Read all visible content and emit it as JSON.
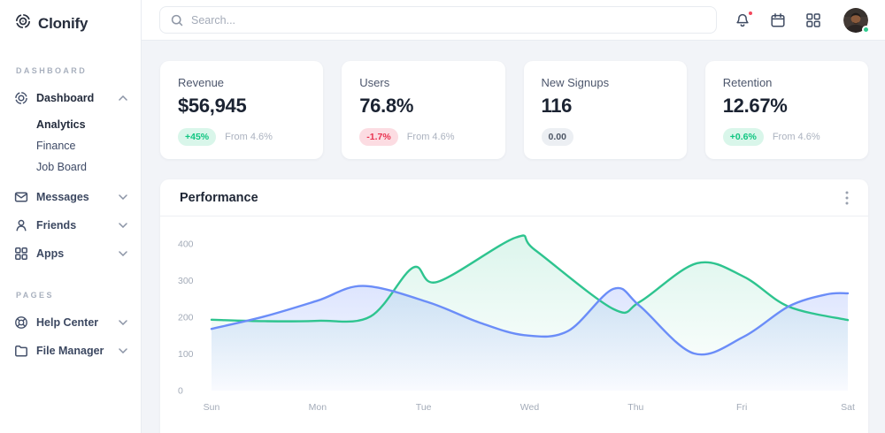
{
  "sidebar": {
    "logo_text": "Clonify",
    "sections": [
      {
        "label": "DASHBOARD",
        "items": [
          {
            "label": "Dashboard",
            "icon": "dashboard-icon",
            "expanded": true,
            "children": [
              {
                "label": "Analytics",
                "active": true
              },
              {
                "label": "Finance",
                "active": false
              },
              {
                "label": "Job Board",
                "active": false
              }
            ]
          },
          {
            "label": "Messages",
            "icon": "mail-icon",
            "expanded": false
          },
          {
            "label": "Friends",
            "icon": "user-icon",
            "expanded": false
          },
          {
            "label": "Apps",
            "icon": "grid-icon",
            "expanded": false
          }
        ]
      },
      {
        "label": "PAGES",
        "items": [
          {
            "label": "Help Center",
            "icon": "lifebuoy-icon",
            "expanded": false
          },
          {
            "label": "File Manager",
            "icon": "folder-icon",
            "expanded": false
          }
        ]
      }
    ]
  },
  "topbar": {
    "search_placeholder": "Search...",
    "bell_has_notification": true,
    "avatar_status": "online"
  },
  "stats": {
    "cards": [
      {
        "label": "Revenue",
        "value": "$56,945",
        "badge": "+45%",
        "badge_style": "positive",
        "note": "From 4.6%"
      },
      {
        "label": "Users",
        "value": "76.8%",
        "badge": "-1.7%",
        "badge_style": "negative",
        "note": "From 4.6%"
      },
      {
        "label": "New Signups",
        "value": "116",
        "badge": "0.00",
        "badge_style": "neutral",
        "note": ""
      },
      {
        "label": "Retention",
        "value": "12.67%",
        "badge": "+0.6%",
        "badge_style": "positive",
        "note": "From 4.6%"
      }
    ]
  },
  "chart_data": {
    "type": "area",
    "title": "Performance",
    "x_labels": [
      "Sun",
      "Mon",
      "Tue",
      "Wed",
      "Thu",
      "Fri",
      "Sat"
    ],
    "y_ticks": [
      0,
      100,
      200,
      300,
      400
    ],
    "ylim": [
      0,
      430
    ],
    "grid": false,
    "legend": "none",
    "series": [
      {
        "name": "green",
        "color": "#2ec48f",
        "fill_from": "rgba(46,196,143,0.17)",
        "fill_to": "rgba(46,196,143,0)",
        "points": [
          [
            0,
            193
          ],
          [
            0.5,
            189
          ],
          [
            1,
            190
          ],
          [
            1.5,
            202
          ],
          [
            1.9,
            335
          ],
          [
            2.13,
            296
          ],
          [
            2.87,
            417
          ],
          [
            3.05,
            383
          ],
          [
            3.79,
            222
          ],
          [
            4.04,
            242
          ],
          [
            4.58,
            347
          ],
          [
            5.02,
            310
          ],
          [
            5.44,
            229
          ],
          [
            6,
            192
          ]
        ]
      },
      {
        "name": "blue",
        "color": "#6b8df8",
        "fill_from": "rgba(107,141,248,0.32)",
        "fill_to": "rgba(107,141,248,0.04)",
        "points": [
          [
            0,
            168
          ],
          [
            0.5,
            202
          ],
          [
            1,
            245
          ],
          [
            1.43,
            285
          ],
          [
            2.04,
            241
          ],
          [
            2.52,
            186
          ],
          [
            2.95,
            151
          ],
          [
            3.36,
            162
          ],
          [
            3.79,
            277
          ],
          [
            4.04,
            230
          ],
          [
            4.55,
            101
          ],
          [
            5.02,
            147
          ],
          [
            5.44,
            229
          ],
          [
            5.8,
            262
          ],
          [
            6,
            265
          ]
        ]
      }
    ]
  }
}
